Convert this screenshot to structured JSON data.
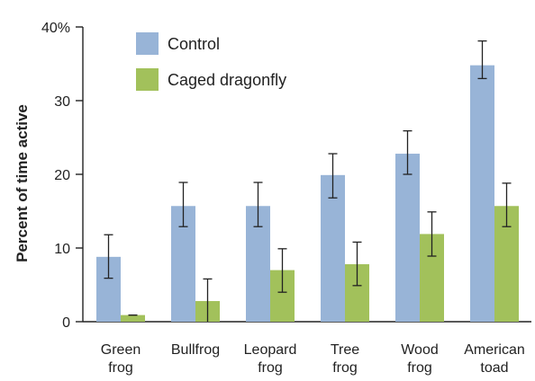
{
  "chart_data": {
    "type": "bar",
    "ylabel": "Percent of time active",
    "ylim": [
      0,
      40
    ],
    "yticks": [
      0,
      10,
      20,
      30,
      40
    ],
    "ytick_labels": [
      "0",
      "10",
      "20",
      "30",
      "40%"
    ],
    "categories": [
      [
        "Green",
        "frog"
      ],
      [
        "Bullfrog"
      ],
      [
        "Leopard",
        "frog"
      ],
      [
        "Tree",
        "frog"
      ],
      [
        "Wood",
        "frog"
      ],
      [
        "American",
        "toad"
      ]
    ],
    "series": [
      {
        "name": "Control",
        "color": "#98B4D7",
        "values": [
          8.8,
          15.7,
          15.7,
          19.9,
          22.8,
          34.8
        ],
        "error_low": [
          5.9,
          12.9,
          12.9,
          16.8,
          20.0,
          33.0
        ],
        "error_high": [
          11.8,
          18.9,
          18.9,
          22.8,
          25.9,
          38.1
        ]
      },
      {
        "name": "Caged dragonfly",
        "color": "#A2C15B",
        "values": [
          0.9,
          2.8,
          7.0,
          7.8,
          11.9,
          15.7
        ],
        "error_low": [
          0.9,
          0.0,
          4.0,
          4.9,
          8.9,
          12.9
        ],
        "error_high": [
          0.9,
          5.8,
          9.9,
          10.8,
          14.9,
          18.8
        ]
      }
    ],
    "legend_position": "top-left",
    "grid": false
  }
}
